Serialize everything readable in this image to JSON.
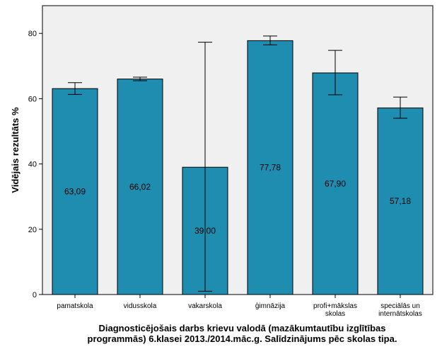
{
  "chart_data": {
    "type": "bar",
    "title": "",
    "categories": [
      [
        "pamatskola"
      ],
      [
        "vidusskola"
      ],
      [
        "vakarskola"
      ],
      [
        "ģimnāzija"
      ],
      [
        "profi+mākslas",
        "skolas"
      ],
      [
        "speciālās un",
        "internātskolas"
      ]
    ],
    "values": [
      63.09,
      66.02,
      39.0,
      77.78,
      67.9,
      57.18
    ],
    "data_labels": [
      "63,09",
      "66,02",
      "39,00",
      "77,78",
      "67,90",
      "57,18"
    ],
    "error_low": [
      61.3,
      65.5,
      1.0,
      76.5,
      61.2,
      54.0
    ],
    "error_high": [
      64.9,
      66.6,
      77.3,
      79.2,
      74.8,
      60.5
    ],
    "ylabel": "Vidējais rezultāts %",
    "xlabel_lines": [
      "Diagnosticējošais darbs krievu valodā (mazākumtautību izglītības",
      "programmās) 6.klasei 2013./2014.māc.g. Salīdzinājums pēc skolas tipa."
    ],
    "ylim": [
      0,
      88.5
    ],
    "yticks": [
      0,
      20,
      40,
      60,
      80
    ],
    "colors": {
      "bar": "#1f8db0",
      "plot_bg": "#f0f0f0",
      "error": "#000000"
    }
  }
}
